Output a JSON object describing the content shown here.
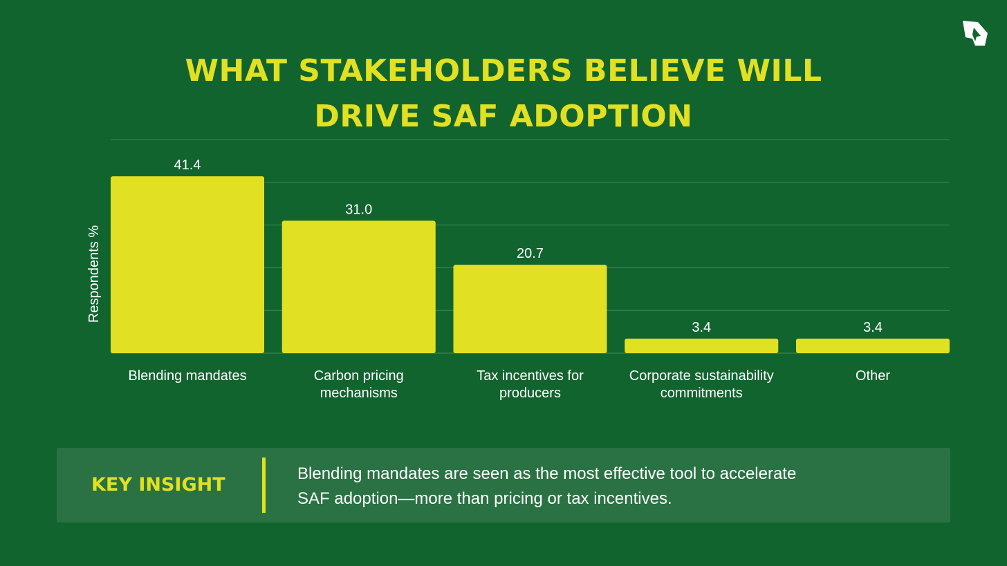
{
  "colors": {
    "background": "#12642f",
    "bar": "#e2e022",
    "title": "#e2e022",
    "gridline": "#3f8a5a",
    "insight_box": "#2a7243",
    "text": "#ffffff"
  },
  "icons": {
    "logo": "aircraft-map-logo-icon"
  },
  "title": {
    "line1": "WHAT STAKEHOLDERS BELIEVE WILL",
    "line2": "DRIVE SAF ADOPTION"
  },
  "chart_data": {
    "type": "bar",
    "title": "WHAT STAKEHOLDERS BELIEVE WILL DRIVE SAF ADOPTION",
    "ylabel": "Respondents %",
    "xlabel": "",
    "ylim": [
      0,
      50
    ],
    "grid": true,
    "legend": "none",
    "categories": [
      [
        "Blending mandates"
      ],
      [
        "Carbon pricing",
        "mechanisms"
      ],
      [
        "Tax incentives for",
        "producers"
      ],
      [
        "Corporate sustainability",
        "commitments"
      ],
      [
        "Other"
      ]
    ],
    "values": [
      41.4,
      31.0,
      20.7,
      3.4,
      3.4
    ],
    "value_labels": [
      "41.4",
      "31.0",
      "20.7",
      "3.4",
      "3.4"
    ]
  },
  "insight": {
    "label": "KEY INSIGHT",
    "text_line1": "Blending mandates are seen as the most effective tool to accelerate",
    "text_line2": "SAF adoption—more than pricing or tax incentives."
  }
}
